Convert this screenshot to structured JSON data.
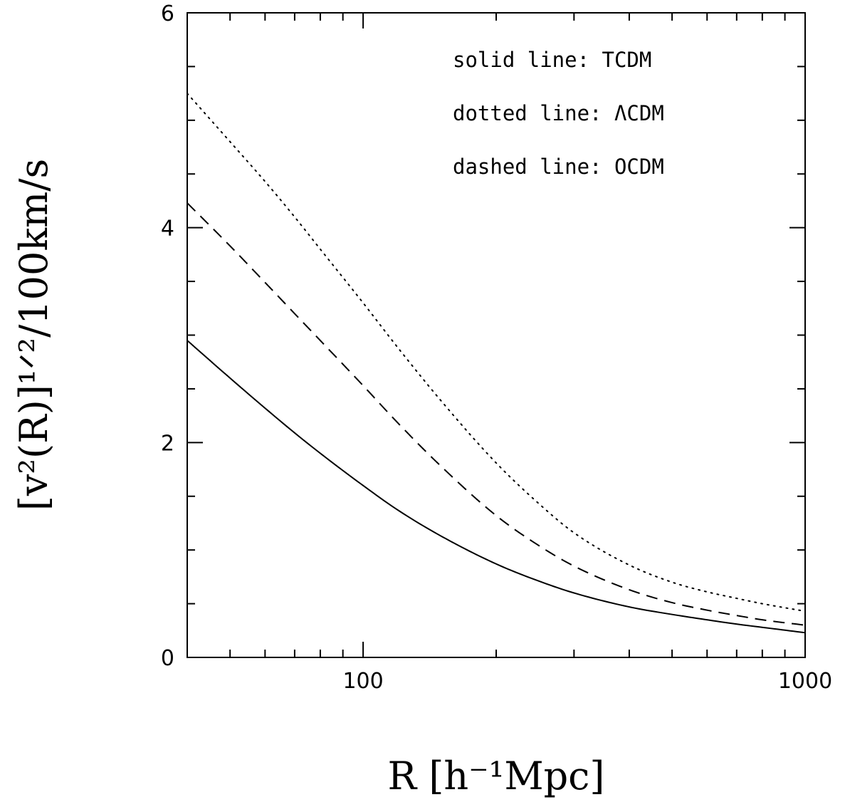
{
  "chart_data": {
    "type": "line",
    "title": "",
    "xlabel": "R [h⁻¹Mpc]",
    "ylabel": "[v²(R)]¹ᐟ²/100km/s",
    "xscale": "log",
    "xlim": [
      40,
      1000
    ],
    "ylim": [
      0,
      6
    ],
    "x_tick_labels": [
      {
        "value": 100,
        "label": "100"
      },
      {
        "value": 1000,
        "label": "1000"
      }
    ],
    "y_tick_labels": [
      {
        "value": 0,
        "label": "0"
      },
      {
        "value": 2,
        "label": "2"
      },
      {
        "value": 4,
        "label": "4"
      },
      {
        "value": 6,
        "label": "6"
      }
    ],
    "grid": false,
    "legend_position": "top-right",
    "annotations": [
      "solid line: TCDM",
      "dotted line: ΛCDM",
      "dashed line: OCDM"
    ],
    "series": [
      {
        "style": "solid",
        "x": [
          40,
          50,
          60,
          70,
          80,
          100,
          120,
          150,
          200,
          250,
          300,
          400,
          500,
          600,
          700,
          800,
          1000
        ],
        "y": [
          2.95,
          2.6,
          2.32,
          2.09,
          1.9,
          1.6,
          1.37,
          1.13,
          0.87,
          0.71,
          0.6,
          0.47,
          0.4,
          0.35,
          0.31,
          0.28,
          0.23
        ]
      },
      {
        "style": "dotted",
        "x": [
          40,
          50,
          60,
          70,
          80,
          100,
          120,
          150,
          200,
          250,
          300,
          400,
          500,
          600,
          700,
          800,
          1000
        ],
        "y": [
          5.25,
          4.8,
          4.43,
          4.1,
          3.8,
          3.3,
          2.88,
          2.39,
          1.81,
          1.43,
          1.16,
          0.86,
          0.7,
          0.61,
          0.55,
          0.5,
          0.43
        ]
      },
      {
        "style": "dashed",
        "x": [
          40,
          50,
          60,
          70,
          80,
          100,
          120,
          150,
          200,
          250,
          300,
          400,
          500,
          600,
          700,
          800,
          1000
        ],
        "y": [
          4.23,
          3.83,
          3.49,
          3.2,
          2.95,
          2.53,
          2.18,
          1.78,
          1.32,
          1.04,
          0.85,
          0.63,
          0.51,
          0.44,
          0.39,
          0.35,
          0.3
        ]
      }
    ]
  }
}
